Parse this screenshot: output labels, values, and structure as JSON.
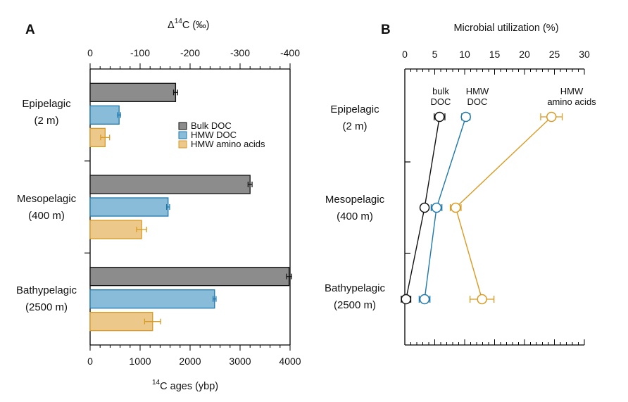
{
  "figure": {
    "panel_a_letter": "A",
    "panel_b_letter": "B"
  },
  "chart_data": [
    {
      "type": "bar",
      "orientation": "horizontal",
      "title": "",
      "categories": [
        {
          "name": "Epipelagic",
          "depth": "(2 m)"
        },
        {
          "name": "Mesopelagic",
          "depth": "(400 m)"
        },
        {
          "name": "Bathypelagic",
          "depth": "(2500 m)"
        }
      ],
      "xlabel_bottom": {
        "sup": "14",
        "main": "C ages (ybp)"
      },
      "xlabel_top": {
        "delta": "Δ",
        "sup": "14",
        "main": "C (‰)"
      },
      "xlim": [
        0,
        4000
      ],
      "bottom_ticks": [
        0,
        1000,
        2000,
        3000,
        4000
      ],
      "top_xlim": [
        0,
        -400
      ],
      "top_ticks": [
        "0",
        "-100",
        "-200",
        "-300",
        "-400"
      ],
      "legend_position": "center-right",
      "series": [
        {
          "name": "Bulk DOC",
          "color": "#8c8c8c",
          "edge": "#111111",
          "values": [
            1710,
            3200,
            3980
          ],
          "err": [
            40,
            40,
            50
          ]
        },
        {
          "name": "HMW DOC",
          "color": "#89bcd8",
          "edge": "#1e78ab",
          "values": [
            580,
            1560,
            2490
          ],
          "err": [
            30,
            30,
            30
          ]
        },
        {
          "name": "HMW amino acids",
          "color": "#ecc98a",
          "edge": "#d99a21",
          "values": [
            300,
            1030,
            1250
          ],
          "err": [
            90,
            100,
            160
          ]
        }
      ]
    },
    {
      "type": "line",
      "title": "Microbial utilization (%)",
      "xlim": [
        0,
        30
      ],
      "x_ticks": [
        0,
        5,
        10,
        15,
        20,
        25,
        30
      ],
      "categories": [
        {
          "name": "Epipelagic",
          "depth": "(2 m)"
        },
        {
          "name": "Mesopelagic",
          "depth": "(400 m)"
        },
        {
          "name": "Bathypelagic",
          "depth": "(2500 m)"
        }
      ],
      "series": [
        {
          "name": "bulk DOC",
          "label_lines": [
            "bulk",
            "DOC"
          ],
          "color": "#111111",
          "values": [
            5.8,
            3.3,
            0.2
          ],
          "err": [
            0.9,
            0.3,
            0.8
          ]
        },
        {
          "name": "HMW DOC",
          "label_lines": [
            "HMW",
            "DOC"
          ],
          "color": "#1e78ab",
          "values": [
            10.2,
            5.3,
            3.3
          ],
          "err": [
            0.7,
            0.9,
            0.9
          ]
        },
        {
          "name": "HMW amino acids",
          "label_lines": [
            "HMW",
            "amino acids"
          ],
          "color": "#d99a21",
          "values": [
            24.5,
            8.5,
            12.9
          ],
          "err": [
            1.8,
            0.9,
            2.0
          ]
        }
      ]
    }
  ]
}
